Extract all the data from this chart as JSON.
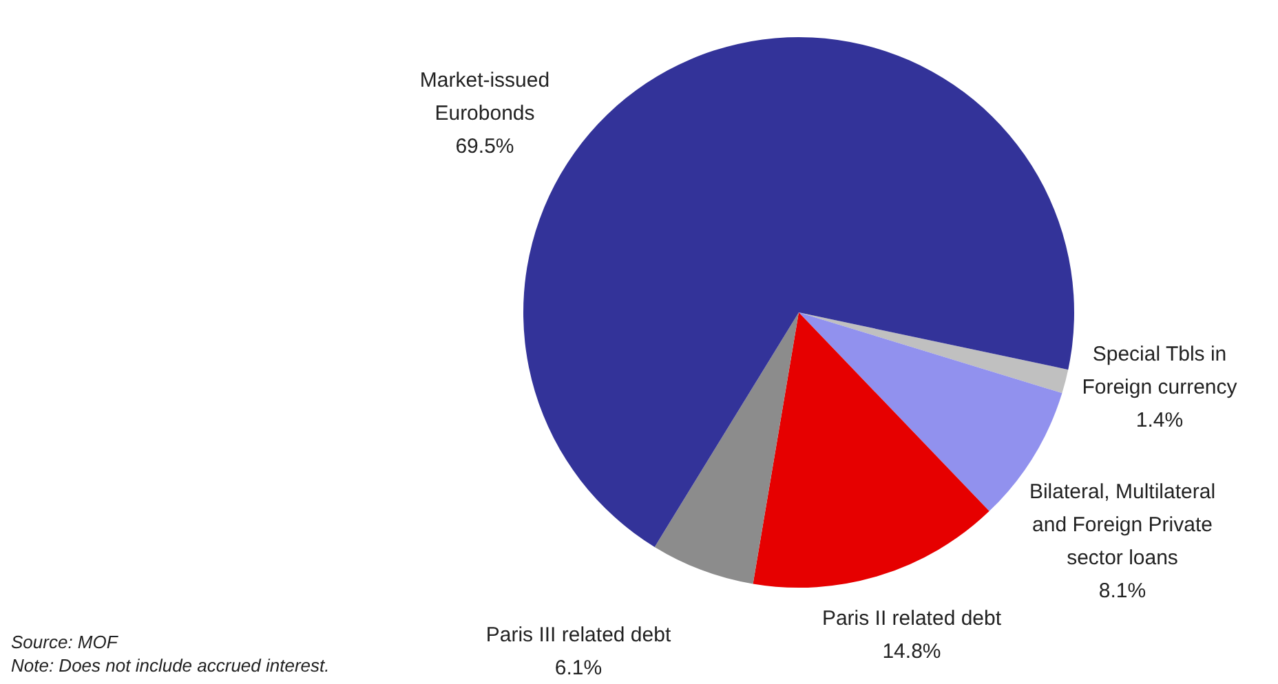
{
  "chart_data": {
    "type": "pie",
    "categories": [
      "Special Tbls in Foreign currency",
      "Bilateral, Multilateral and Foreign Private sector loans",
      "Paris II related debt",
      "Paris III related debt",
      "Market-issued Eurobonds"
    ],
    "values": [
      1.4,
      8.1,
      14.8,
      6.1,
      69.5
    ],
    "value_labels": [
      "1.4%",
      "8.1%",
      "14.8%",
      "6.1%",
      "69.5%"
    ],
    "colors": [
      "#c0c0c0",
      "#9191ee",
      "#e60000",
      "#8c8c8c",
      "#333399"
    ],
    "annotations": [
      "Source: MOF",
      "Note: Does not include accrued interest."
    ]
  }
}
